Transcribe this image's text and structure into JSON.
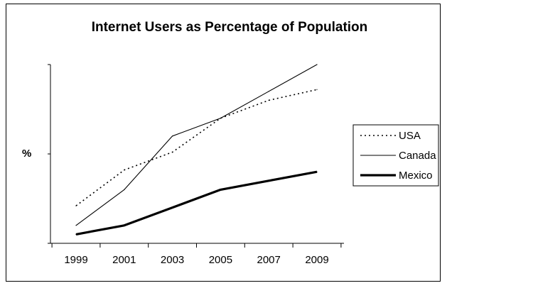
{
  "chart_data": {
    "type": "line",
    "title": "Internet Users as Percentage of Population",
    "xlabel": "",
    "ylabel": "%",
    "x": [
      1999,
      2001,
      2003,
      2005,
      2007,
      2009
    ],
    "x_tick_labels": [
      "1999",
      "2001",
      "2003",
      "2005",
      "2007",
      "2009"
    ],
    "ylim": [
      0,
      100
    ],
    "grid": false,
    "legend_position": "right",
    "series": [
      {
        "name": "USA",
        "style": "dotted",
        "color": "#000000",
        "values": [
          21,
          41,
          51,
          70,
          80,
          86
        ]
      },
      {
        "name": "Canada",
        "style": "thin",
        "color": "#000000",
        "values": [
          10,
          30,
          60,
          70,
          85,
          100
        ]
      },
      {
        "name": "Mexico",
        "style": "thick",
        "color": "#000000",
        "values": [
          5,
          10,
          20,
          30,
          35,
          40
        ]
      }
    ]
  }
}
